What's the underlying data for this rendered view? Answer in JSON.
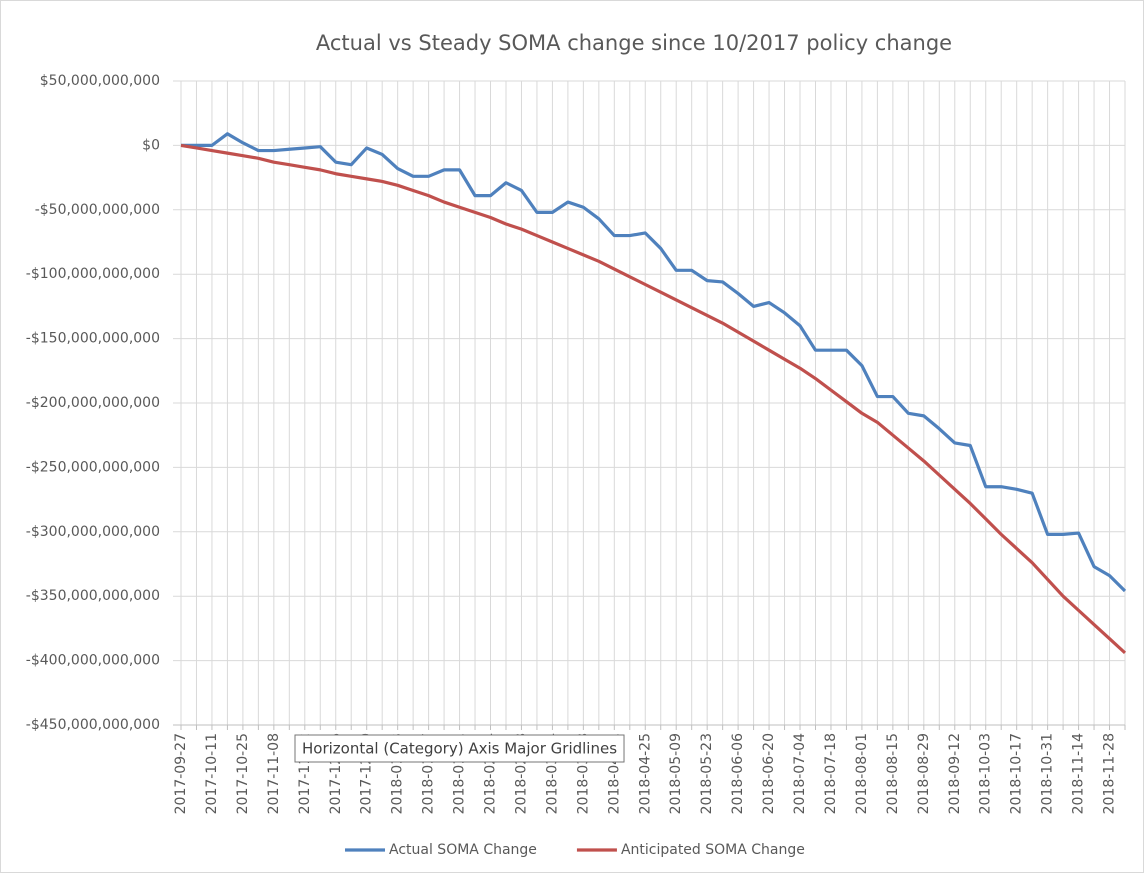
{
  "chart_data": {
    "type": "line",
    "title": "Actual vs Steady SOMA change since 10/2017 policy change",
    "categories": [
      "2017-09-27",
      null,
      "2017-10-11",
      null,
      "2017-10-25",
      null,
      "2017-11-08",
      null,
      "2017-11-22",
      null,
      "2017-12-06",
      null,
      "2017-12-20",
      null,
      "2018-01-03",
      null,
      "2018-01-17",
      null,
      "2018-01-31",
      null,
      "2018-02-14",
      null,
      "2018-02-28",
      null,
      "2018-03-14",
      null,
      "2018-03-28",
      null,
      "2018-04-11",
      null,
      "2018-04-25",
      null,
      "2018-05-09",
      null,
      "2018-05-23",
      null,
      "2018-06-06",
      null,
      "2018-06-20",
      null,
      "2018-07-04",
      null,
      "2018-07-18",
      null,
      "2018-08-01",
      null,
      "2018-08-15",
      null,
      "2018-08-29",
      null,
      "2018-09-12",
      null,
      "2018-10-03",
      null,
      "2018-10-17",
      null,
      "2018-10-31",
      null,
      "2018-11-14",
      null,
      "2018-11-28",
      null
    ],
    "series": [
      {
        "name": "Actual SOMA Change",
        "color": "#4f81bd",
        "values": [
          0,
          0,
          0,
          9000000000,
          2000000000,
          -4000000000,
          -4000000000,
          -3000000000,
          -2000000000,
          -1000000000,
          -13000000000,
          -15000000000,
          -2000000000,
          -7000000000,
          -18000000000,
          -24000000000,
          -24000000000,
          -19000000000,
          -19000000000,
          -39000000000,
          -39000000000,
          -29000000000,
          -35000000000,
          -52000000000,
          -52000000000,
          -44000000000,
          -48000000000,
          -57000000000,
          -70000000000,
          -70000000000,
          -68000000000,
          -80000000000,
          -97000000000,
          -97000000000,
          -105000000000,
          -106000000000,
          -115000000000,
          -125000000000,
          -122000000000,
          -130000000000,
          -140000000000,
          -159000000000,
          -159000000000,
          -159000000000,
          -171000000000,
          -195000000000,
          -195000000000,
          -208000000000,
          -210000000000,
          -220000000000,
          -231000000000,
          -233000000000,
          -265000000000,
          -265000000000,
          -267000000000,
          -270000000000,
          -302000000000,
          -302000000000,
          -301000000000,
          -327000000000,
          -334000000000,
          -346000000000
        ]
      },
      {
        "name": "Anticipated SOMA Change",
        "color": "#c0504d",
        "values": [
          0,
          -2000000000,
          -4000000000,
          -6000000000,
          -8000000000,
          -10000000000,
          -13000000000,
          -15000000000,
          -17000000000,
          -19000000000,
          -22000000000,
          -24000000000,
          -26000000000,
          -28000000000,
          -31000000000,
          -35000000000,
          -39000000000,
          -44000000000,
          -48000000000,
          -52000000000,
          -56000000000,
          -61000000000,
          -65000000000,
          -70000000000,
          -75000000000,
          -80000000000,
          -85000000000,
          -90000000000,
          -96000000000,
          -102000000000,
          -108000000000,
          -114000000000,
          -120000000000,
          -126000000000,
          -132000000000,
          -138000000000,
          -145000000000,
          -152000000000,
          -159000000000,
          -166000000000,
          -173000000000,
          -181000000000,
          -190000000000,
          -199000000000,
          -208000000000,
          -215000000000,
          -225000000000,
          -235000000000,
          -245000000000,
          -256000000000,
          -267000000000,
          -278000000000,
          -290000000000,
          -302000000000,
          -313000000000,
          -324000000000,
          -337000000000,
          -350000000000,
          -361000000000,
          -372000000000,
          -383000000000,
          -394000000000
        ]
      }
    ],
    "ylim": [
      -450000000000,
      50000000000
    ],
    "yticks": [
      {
        "value": 50000000000,
        "label": "$50,000,000,000"
      },
      {
        "value": 0,
        "label": "$0"
      },
      {
        "value": -50000000000,
        "label": "-$50,000,000,000"
      },
      {
        "value": -100000000000,
        "label": "-$100,000,000,000"
      },
      {
        "value": -150000000000,
        "label": "-$150,000,000,000"
      },
      {
        "value": -200000000000,
        "label": "-$200,000,000,000"
      },
      {
        "value": -250000000000,
        "label": "-$250,000,000,000"
      },
      {
        "value": -300000000000,
        "label": "-$300,000,000,000"
      },
      {
        "value": -350000000000,
        "label": "-$350,000,000,000"
      },
      {
        "value": -400000000000,
        "label": "-$400,000,000,000"
      },
      {
        "value": -450000000000,
        "label": "-$450,000,000,000"
      }
    ],
    "grid": true,
    "legend": "bottom",
    "tooltip": "Horizontal (Category) Axis Major Gridlines"
  }
}
